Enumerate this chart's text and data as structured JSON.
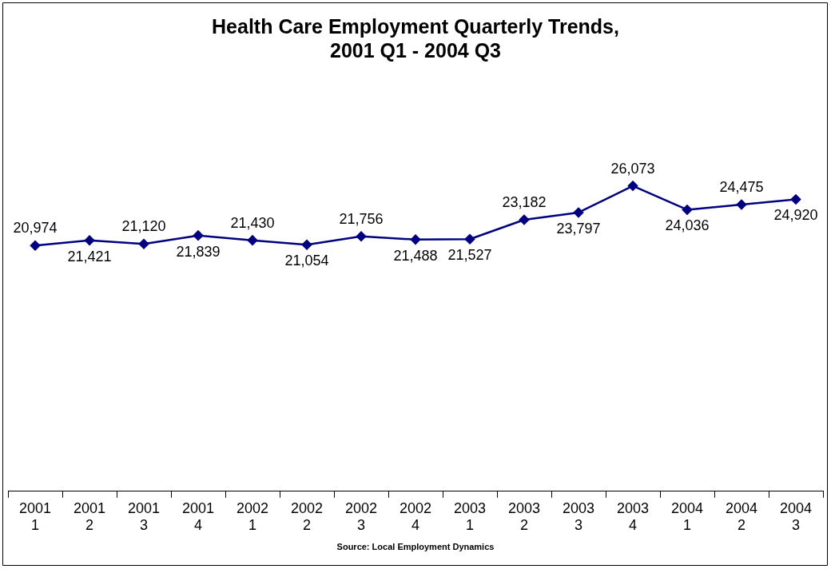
{
  "chart_data": {
    "type": "line",
    "title": "Health Care Employment Quarterly Trends,\n2001 Q1 - 2004 Q3",
    "categories": [
      "2001\n1",
      "2001\n2",
      "2001\n3",
      "2001\n4",
      "2002\n1",
      "2002\n2",
      "2002\n3",
      "2002\n4",
      "2003\n1",
      "2003\n2",
      "2003\n3",
      "2003\n4",
      "2004\n1",
      "2004\n2",
      "2004\n3"
    ],
    "series": [
      {
        "color": "#000080",
        "values": [
          20974,
          21421,
          21120,
          21839,
          21430,
          21054,
          21756,
          21488,
          21527,
          23182,
          23797,
          26073,
          24036,
          24475,
          24920
        ],
        "value_labels": [
          "20,974",
          "21,421",
          "21,120",
          "21,839",
          "21,430",
          "21,054",
          "21,756",
          "21,488",
          "21,527",
          "23,182",
          "23,797",
          "26,073",
          "24,036",
          "24,475",
          "24,920"
        ]
      }
    ],
    "tick_labels": "x",
    "marker": "diamond",
    "line_style": "solid",
    "grid": false,
    "legend": false,
    "annotations": [
      "Source: Local Employment Dynamics"
    ]
  }
}
